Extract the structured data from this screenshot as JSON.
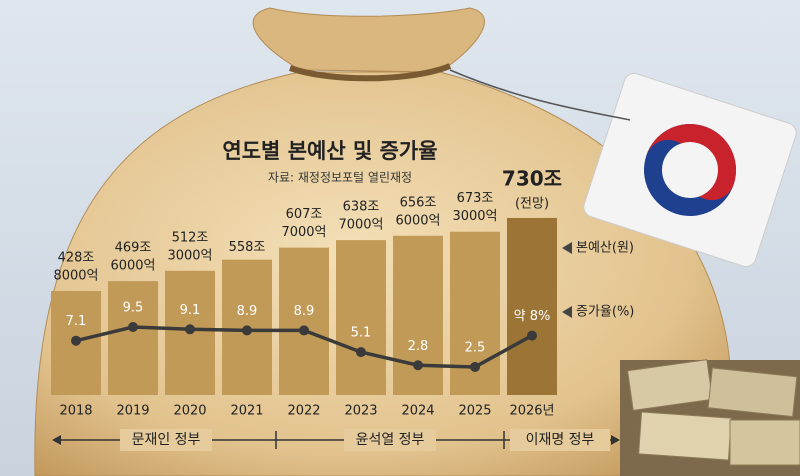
{
  "chart_data": {
    "type": "bar",
    "title": "연도별 본예산 및 증가율",
    "subtitle": "자료: 재정정보포털 열린재정",
    "categories": [
      "2018",
      "2019",
      "2020",
      "2021",
      "2022",
      "2023",
      "2024",
      "2025",
      "2026년"
    ],
    "series": [
      {
        "name": "본예산(원)",
        "type": "bar",
        "colors": [
          "#c29a57",
          "#c29a57",
          "#c29a57",
          "#c29a57",
          "#c29a57",
          "#c29a57",
          "#c29a57",
          "#c29a57",
          "#9b7436"
        ],
        "values": [
          428.8,
          469.6,
          512.3,
          558,
          607.7,
          638.7,
          656.6,
          673.3,
          730
        ],
        "value_labels": [
          [
            "428조",
            "8000억"
          ],
          [
            "469조",
            "6000억"
          ],
          [
            "512조",
            "3000억"
          ],
          [
            "558조"
          ],
          [
            "607조",
            "7000억"
          ],
          [
            "638조",
            "7000억"
          ],
          [
            "656조",
            "6000억"
          ],
          [
            "673조",
            "3000억"
          ],
          [
            "730조"
          ]
        ]
      },
      {
        "name": "증가율(%)",
        "type": "line",
        "color": "#3a3a3a",
        "values": [
          7.1,
          9.5,
          9.1,
          8.9,
          8.9,
          5.1,
          2.8,
          2.5,
          8
        ],
        "value_labels": [
          "7.1",
          "9.5",
          "9.1",
          "8.9",
          "8.9",
          "5.1",
          "2.8",
          "2.5",
          "약 8%"
        ]
      }
    ],
    "annotation": "(전망)",
    "periods": [
      "문재인 정부",
      "윤석열 정부",
      "이재명 정부"
    ]
  }
}
